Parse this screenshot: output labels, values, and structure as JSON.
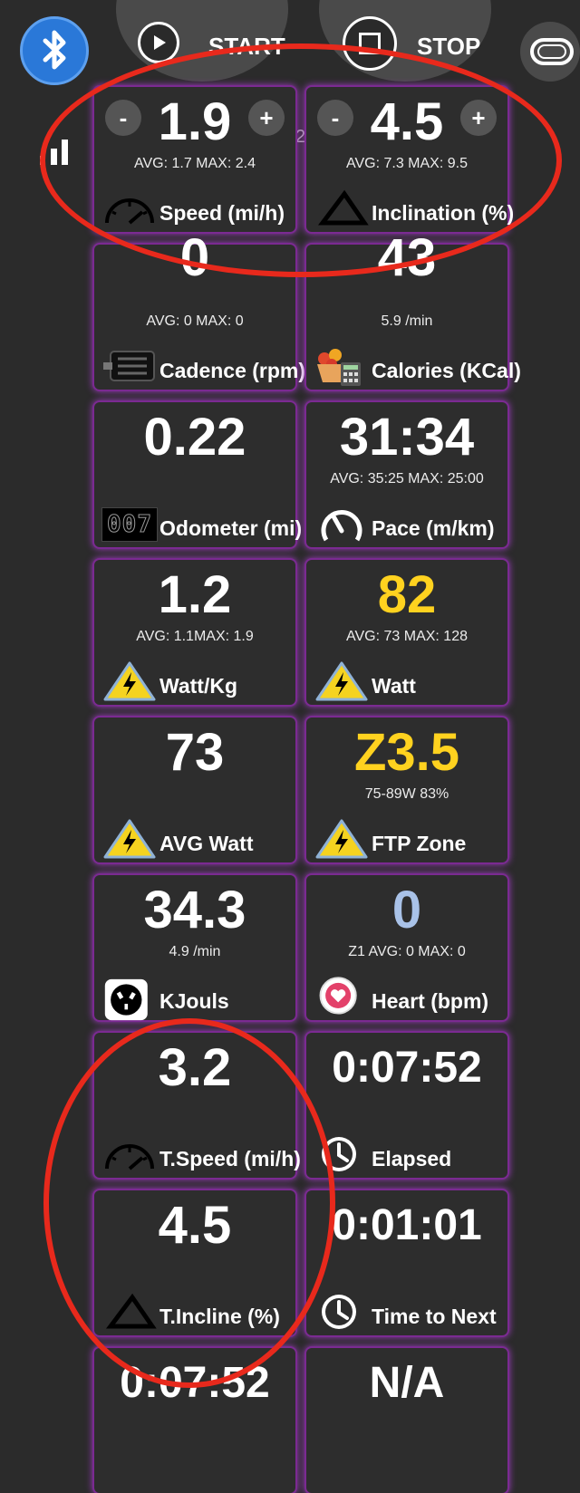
{
  "header": {
    "start_label": "START",
    "stop_label": "STOP"
  },
  "badge": "2",
  "tiles": [
    {
      "value": "1.9",
      "sub": "AVG: 1.7 MAX: 2.4",
      "label": "Speed (mi/h)",
      "icon": "speedometer-icon"
    },
    {
      "value": "4.5",
      "sub": "AVG: 7.3 MAX: 9.5",
      "label": "Inclination (%)",
      "icon": "incline-icon"
    },
    {
      "value": "0",
      "sub": "AVG: 0 MAX: 0",
      "label": "Cadence (rpm)",
      "icon": "pedal-icon"
    },
    {
      "value": "43",
      "sub": "5.9 /min",
      "label": "Calories (KCal)",
      "icon": "calories-icon"
    },
    {
      "value": "0.22",
      "sub": "",
      "label": "Odometer (mi)",
      "icon": "odometer-icon",
      "odometer_digits": "007"
    },
    {
      "value": "31:34",
      "sub": "AVG: 35:25 MAX: 25:00",
      "label": "Pace (m/km)",
      "icon": "pace-gauge-icon"
    },
    {
      "value": "1.2",
      "sub": "AVG: 1.1MAX: 1.9",
      "label": "Watt/Kg",
      "icon": "lightning-icon"
    },
    {
      "value": "82",
      "sub": "AVG: 73 MAX: 128",
      "label": "Watt",
      "icon": "lightning-icon"
    },
    {
      "value": "73",
      "sub": "",
      "label": "AVG Watt",
      "icon": "lightning-icon"
    },
    {
      "value": "Z3.5",
      "sub": "75-89W 83%",
      "label": "FTP Zone",
      "icon": "lightning-icon"
    },
    {
      "value": "34.3",
      "sub": "4.9 /min",
      "label": "KJouls",
      "icon": "power-outlet-icon"
    },
    {
      "value": "0",
      "sub": "Z1 AVG: 0 MAX: 0",
      "label": "Heart (bpm)",
      "icon": "heart-icon"
    },
    {
      "value": "3.2",
      "sub": "",
      "label": "T.Speed (mi/h)",
      "icon": "speedometer-icon"
    },
    {
      "value": "0:07:52",
      "sub": "",
      "label": "Elapsed",
      "icon": "clock-icon"
    },
    {
      "value": "4.5",
      "sub": "",
      "label": "T.Incline (%)",
      "icon": "incline-icon"
    },
    {
      "value": "0:01:01",
      "sub": "",
      "label": "Time to Next",
      "icon": "clock-icon"
    },
    {
      "value": "0:07:52",
      "sub": "",
      "label": "",
      "icon": ""
    },
    {
      "value": "N/A",
      "sub": "",
      "label": "",
      "icon": ""
    }
  ],
  "colors": {
    "highlight_value": "#ffd21f",
    "heart_value": "#a9c2e8",
    "tile_glow": "#9d3bbf",
    "annotation_ellipse": "#e8291c"
  }
}
